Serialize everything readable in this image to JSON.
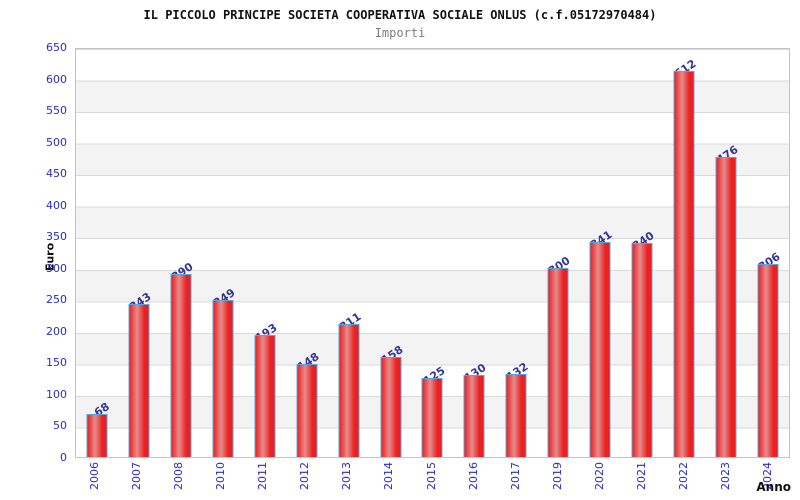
{
  "title": "IL PICCOLO PRINCIPE SOCIETA COOPERATIVA SOCIALE ONLUS (c.f.05172970484)",
  "subtitle": "Importi",
  "chart_data": {
    "type": "bar",
    "title": "IL PICCOLO PRINCIPE SOCIETA COOPERATIVA SOCIALE ONLUS (c.f.05172970484)",
    "subtitle": "Importi",
    "xlabel": "Anno",
    "ylabel": "Euro",
    "categories": [
      "2006",
      "2007",
      "2008",
      "2010",
      "2011",
      "2012",
      "2013",
      "2014",
      "2015",
      "2016",
      "2017",
      "2019",
      "2020",
      "2021",
      "2022",
      "2023",
      "2024"
    ],
    "values": [
      68,
      243,
      290,
      249,
      193,
      148,
      211,
      158,
      125,
      130,
      132,
      300,
      341,
      340,
      612,
      476,
      306
    ],
    "yticks": [
      0,
      50,
      100,
      150,
      200,
      250,
      300,
      350,
      400,
      450,
      500,
      550,
      600,
      650
    ],
    "ylim": [
      0,
      650
    ],
    "ytick_step": 50,
    "grid": true,
    "bands": "alternating white/gray horizontal bands every 50 units",
    "legend_position": "none",
    "bar_value_labels_rotated": true,
    "x_labels_rotated_vertical": true
  },
  "colors": {
    "axis_tick_blue": "#2a2ad0",
    "value_label_blue": "#333399",
    "bar_fill_red": "#e82020",
    "bar_fill_light": "#e58c8c",
    "bar_border_blue": "#58a4de",
    "band_gray": "#f3f3f3",
    "grid_line": "#dadada",
    "plot_border": "#c4c4c4",
    "subtitle_gray": "#7f7f7f",
    "text_black": "#111111",
    "background": "#ffffff"
  }
}
